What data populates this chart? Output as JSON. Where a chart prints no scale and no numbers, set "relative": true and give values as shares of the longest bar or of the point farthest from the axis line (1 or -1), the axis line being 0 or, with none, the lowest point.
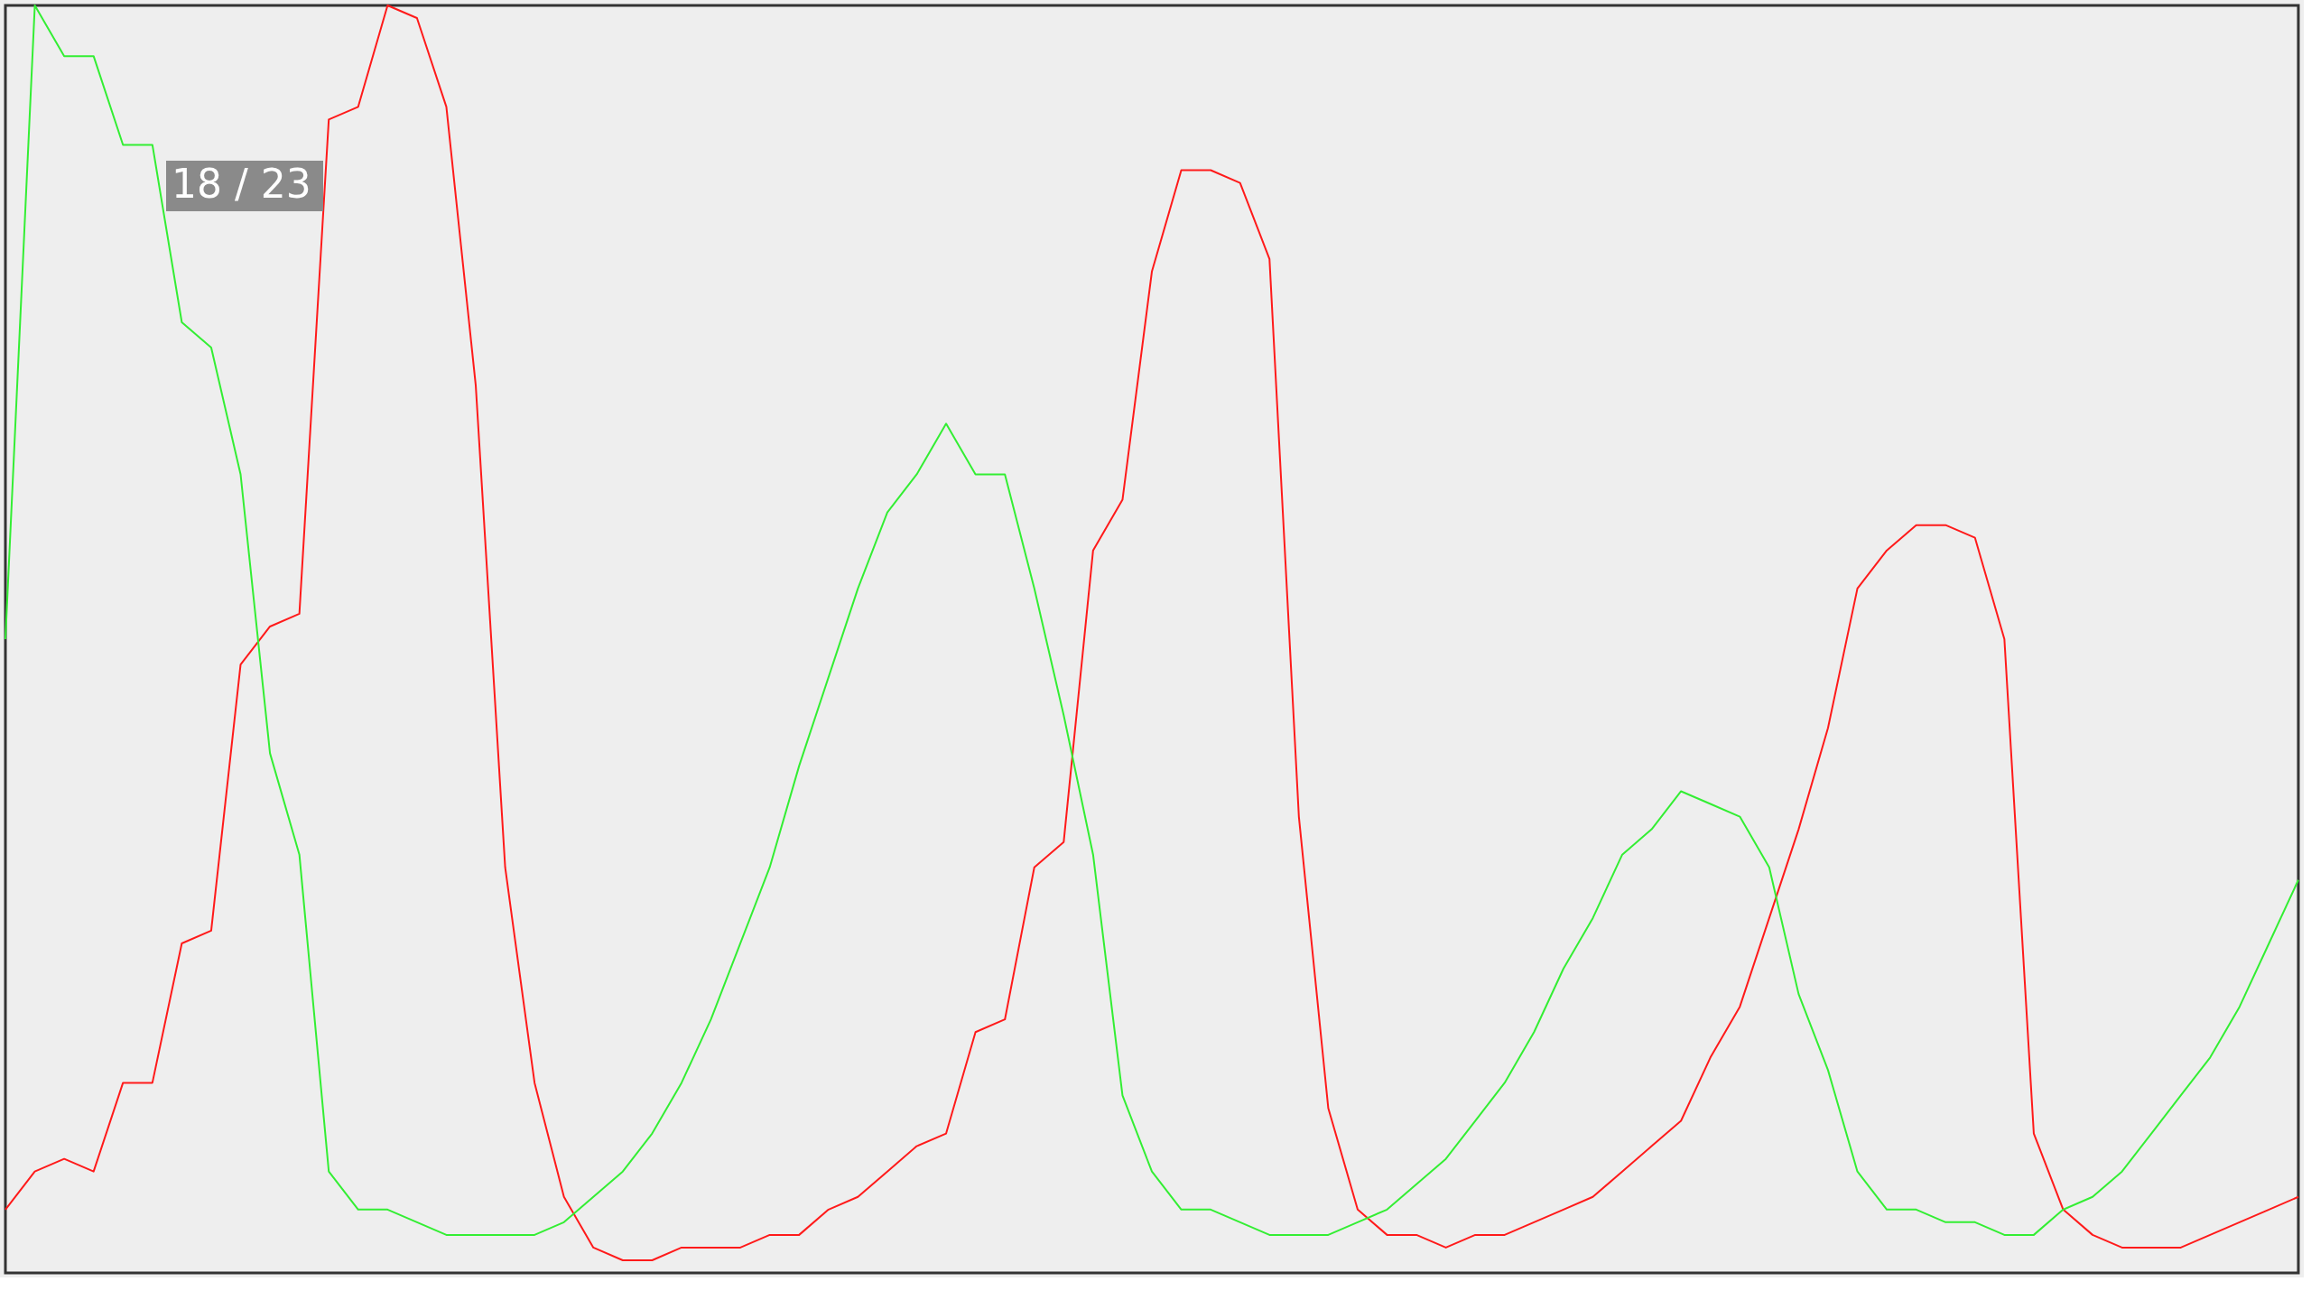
{
  "chart_data": {
    "type": "line",
    "relative": true,
    "grid": false,
    "tick_labels": false,
    "marker": "none",
    "line_style": "solid",
    "annotations": [
      "18 / 23"
    ],
    "categories": [
      null,
      null,
      null,
      null,
      null,
      null,
      null,
      null,
      null,
      null,
      null,
      null,
      null,
      null,
      null,
      null,
      null,
      null,
      null,
      null,
      null,
      null,
      null,
      null,
      null,
      null,
      null,
      null,
      null,
      null,
      null,
      null,
      null,
      null,
      null,
      null,
      null,
      null,
      null,
      null,
      null,
      null,
      null,
      null,
      null,
      null,
      null,
      null,
      null,
      null,
      null,
      null,
      null,
      null,
      null,
      null,
      null,
      null,
      null,
      null,
      null,
      null,
      null,
      null,
      null,
      null,
      null,
      null,
      null,
      null,
      null,
      null,
      null,
      null,
      null,
      null,
      null,
      null,
      null
    ],
    "series": [
      {
        "color": "#ff1a1a",
        "values": [
          0.05,
          0.08,
          0.09,
          0.08,
          0.15,
          0.15,
          0.26,
          0.27,
          0.48,
          0.51,
          0.52,
          0.91,
          0.92,
          1.0,
          0.99,
          0.92,
          0.7,
          0.32,
          0.15,
          0.06,
          0.02,
          0.01,
          0.01,
          0.02,
          0.02,
          0.02,
          0.03,
          0.03,
          0.05,
          0.06,
          0.08,
          0.1,
          0.11,
          0.19,
          0.2,
          0.32,
          0.34,
          0.57,
          0.61,
          0.79,
          0.87,
          0.87,
          0.86,
          0.8,
          0.36,
          0.13,
          0.05,
          0.03,
          0.03,
          0.02,
          0.03,
          0.03,
          0.04,
          0.05,
          0.06,
          0.08,
          0.1,
          0.12,
          0.17,
          0.21,
          0.28,
          0.35,
          0.43,
          0.54,
          0.57,
          0.59,
          0.59,
          0.58,
          0.5,
          0.11,
          0.05,
          0.03,
          0.02,
          0.02,
          0.02,
          0.03,
          0.04,
          0.05,
          0.06
        ]
      },
      {
        "color": "#33ee33",
        "values": [
          0.5,
          1.0,
          0.96,
          0.96,
          0.89,
          0.89,
          0.75,
          0.73,
          0.63,
          0.41,
          0.33,
          0.08,
          0.05,
          0.05,
          0.04,
          0.03,
          0.03,
          0.03,
          0.03,
          0.04,
          0.06,
          0.08,
          0.11,
          0.15,
          0.2,
          0.26,
          0.32,
          0.4,
          0.47,
          0.54,
          0.6,
          0.63,
          0.67,
          0.63,
          0.63,
          0.54,
          0.44,
          0.33,
          0.14,
          0.08,
          0.05,
          0.05,
          0.04,
          0.03,
          0.03,
          0.03,
          0.04,
          0.05,
          0.07,
          0.09,
          0.12,
          0.15,
          0.19,
          0.24,
          0.28,
          0.33,
          0.35,
          0.38,
          0.37,
          0.36,
          0.32,
          0.22,
          0.16,
          0.08,
          0.05,
          0.05,
          0.04,
          0.04,
          0.03,
          0.03,
          0.05,
          0.06,
          0.08,
          0.11,
          0.14,
          0.17,
          0.21,
          0.26,
          0.31
        ]
      }
    ]
  }
}
